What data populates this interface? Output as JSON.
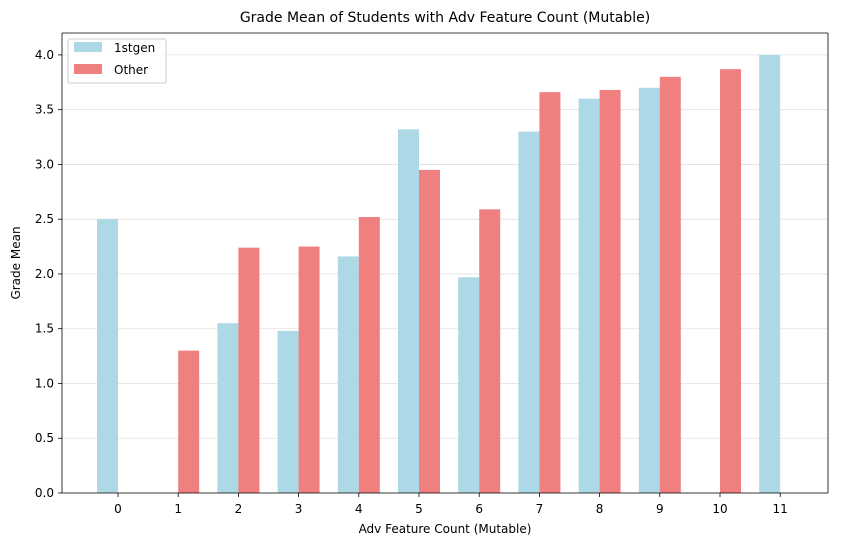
{
  "chart_data": {
    "type": "bar",
    "title": "Grade Mean of Students with Adv Feature Count (Mutable)",
    "xlabel": "Adv Feature Count (Mutable)",
    "ylabel": "Grade Mean",
    "categories": [
      "0",
      "1",
      "2",
      "3",
      "4",
      "5",
      "6",
      "7",
      "8",
      "9",
      "10",
      "11"
    ],
    "ylim": [
      0,
      4.2
    ],
    "yticks": [
      "0.0",
      "0.5",
      "1.0",
      "1.5",
      "2.0",
      "2.5",
      "3.0",
      "3.5",
      "4.0"
    ],
    "grid": "horizontal",
    "legend": "top-left",
    "series": [
      {
        "name": "1stgen",
        "color": "#ADD8E6",
        "values": [
          2.5,
          null,
          1.55,
          1.48,
          2.16,
          3.32,
          1.97,
          3.3,
          3.6,
          3.7,
          null,
          4.0
        ]
      },
      {
        "name": "Other",
        "color": "#F08080",
        "values": [
          null,
          1.3,
          2.24,
          2.25,
          2.52,
          2.95,
          2.59,
          3.66,
          3.68,
          3.8,
          3.87,
          null
        ]
      }
    ]
  }
}
